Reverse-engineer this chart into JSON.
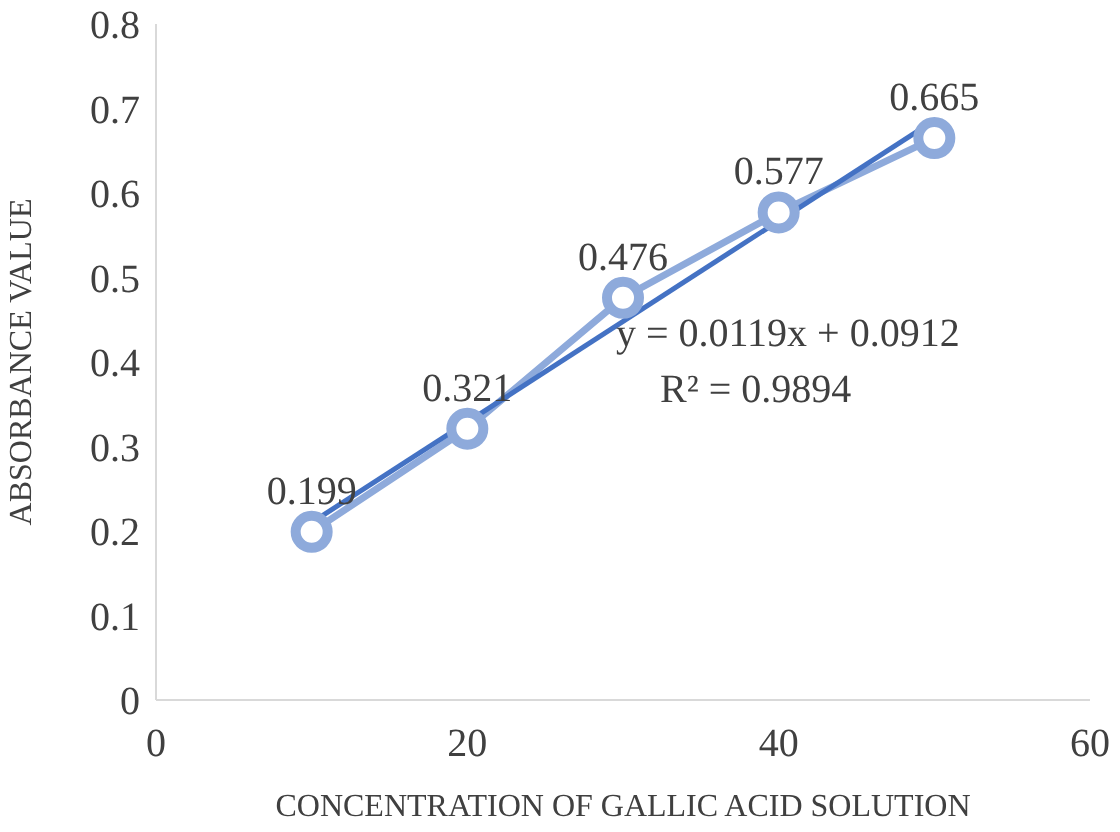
{
  "chart_data": {
    "type": "line",
    "xlabel": "CONCENTRATION OF GALLIC ACID SOLUTION",
    "ylabel": "ABSORBANCE VALUE",
    "x": [
      10,
      20,
      30,
      40,
      50
    ],
    "series": [
      {
        "color": "#8eaadb",
        "values": [
          0.199,
          0.321,
          0.476,
          0.577,
          0.665
        ],
        "value_labels": [
          "0.199",
          "0.321",
          "0.476",
          "0.577",
          "0.665"
        ],
        "marker": "circle"
      },
      {
        "color": "#4472c4",
        "x": [
          10,
          50
        ],
        "values": [
          0.21,
          0.686
        ],
        "marker": "none"
      }
    ],
    "annotations": [
      "y = 0.0119x + 0.0912",
      "R² = 0.9894"
    ],
    "xlim": [
      0,
      60
    ],
    "xticks": [
      0,
      20,
      40,
      60
    ],
    "ylim": [
      0,
      0.8
    ],
    "yticks": [
      0,
      0.1,
      0.2,
      0.3,
      0.4,
      0.5,
      0.6,
      0.7,
      0.8
    ],
    "grid": false
  }
}
